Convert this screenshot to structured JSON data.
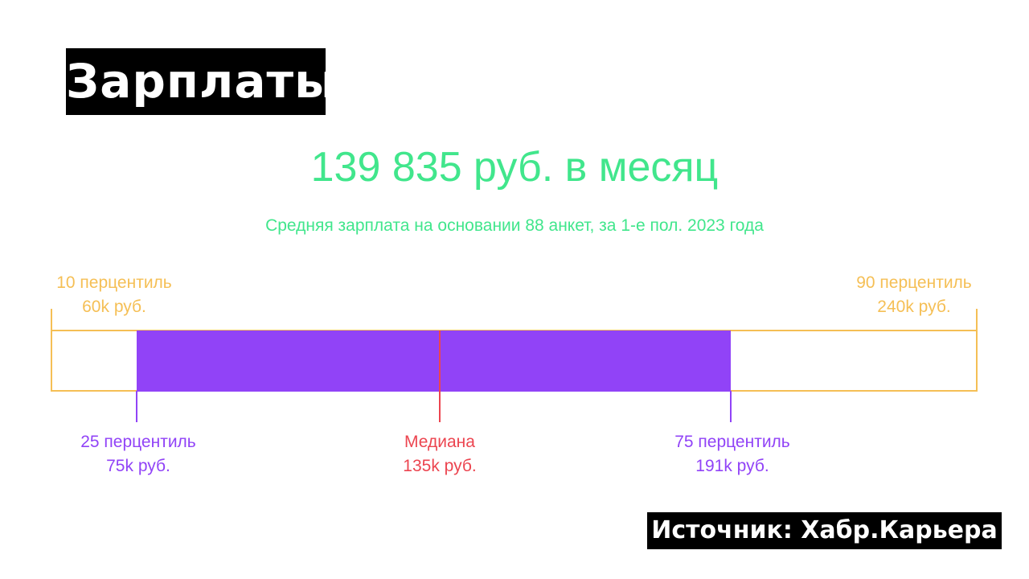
{
  "title": "Зарплаты",
  "headline": "139 835 руб. в месяц",
  "subtitle": "Средняя зарплата на основании 88 анкет, за 1-е пол. 2023 года",
  "source": "Источник: Хабр.Карьера",
  "colors": {
    "headline": "#41e68c",
    "range_10_90": "#f5bf55",
    "range_25_75": "#9143f7",
    "median": "#ec4550"
  },
  "chart_data": {
    "type": "box",
    "unit": "k руб.",
    "markers": {
      "p10": {
        "value": 60,
        "label": "10 перцентиль",
        "value_label": "60k руб."
      },
      "p25": {
        "value": 75,
        "label": "25 перцентиль",
        "value_label": "75k руб."
      },
      "median": {
        "value": 135,
        "label": "Медиана",
        "value_label": "135k руб."
      },
      "p75": {
        "value": 191,
        "label": "75 перцентиль",
        "value_label": "191k руб."
      },
      "p90": {
        "value": 240,
        "label": "90 перцентиль",
        "value_label": "240k руб."
      }
    }
  }
}
